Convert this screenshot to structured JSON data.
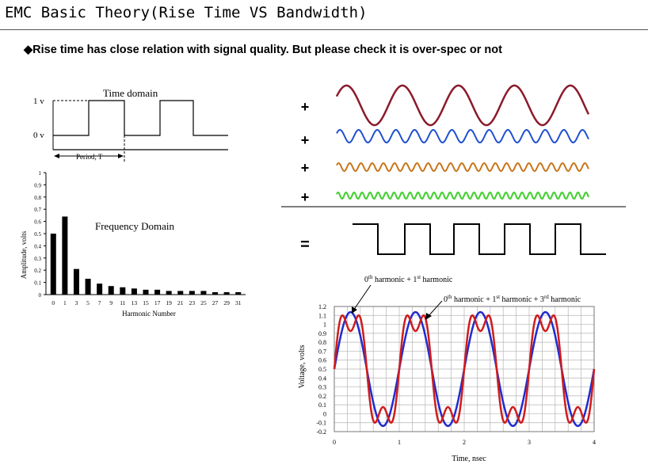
{
  "slide": {
    "title": "EMC Basic Theory(Rise Time VS Bandwidth)",
    "bullet_marker": "◆",
    "bullet_text": "Rise time has close relation with signal quality. But please check it is over-spec or not"
  },
  "time_domain": {
    "label": "Time domain",
    "y_labels": [
      "1 v",
      "0 v"
    ],
    "period_label": "Period, T"
  },
  "frequency_domain": {
    "label": "Frequency Domain",
    "colors": {
      "bars": "#000000"
    }
  },
  "harmonics_sum": {
    "plus_symbols": [
      "+",
      "+",
      "+",
      "+"
    ],
    "equals_symbol": "=",
    "colors": {
      "h1": "#8b1a2b",
      "h3": "#1f4fd1",
      "h5": "#c8761a",
      "h7": "#3fcf2a",
      "square": "#000000"
    }
  },
  "waveform_annotations": {
    "label_a_prefix": "0",
    "label_a_sup1": "th",
    "label_a_mid": " harmonic + 1",
    "label_a_sup2": "st",
    "label_a_suffix": " harmonic",
    "label_b_prefix": "0",
    "label_b_sup1": "th",
    "label_b_mid1": " harmonic + 1",
    "label_b_sup2": "st",
    "label_b_mid2": " harmonic + 3",
    "label_b_sup3": "rd",
    "label_b_suffix": " harmonic"
  },
  "chart_data": [
    {
      "type": "bar",
      "title": "Frequency Domain",
      "xlabel": "Harmonic Number",
      "ylabel": "Amplitude, volts",
      "ylim": [
        0,
        1
      ],
      "yticks": [
        0,
        0.1,
        0.2,
        0.3,
        0.4,
        0.5,
        0.6,
        0.7,
        0.8,
        0.9,
        1
      ],
      "categories": [
        "0",
        "1",
        "3",
        "5",
        "7",
        "9",
        "11",
        "13",
        "15",
        "17",
        "19",
        "21",
        "23",
        "25",
        "27",
        "29",
        "31"
      ],
      "values": [
        0.5,
        0.64,
        0.21,
        0.13,
        0.09,
        0.07,
        0.06,
        0.05,
        0.04,
        0.04,
        0.03,
        0.03,
        0.03,
        0.03,
        0.02,
        0.02,
        0.02
      ],
      "grid": false
    },
    {
      "type": "line",
      "xlabel": "Time, nsec",
      "ylabel": "Voltage, volts",
      "xlim": [
        0,
        4
      ],
      "ylim": [
        -0.2,
        1.2
      ],
      "xticks": [
        0,
        1,
        2,
        3,
        4
      ],
      "yticks": [
        -0.2,
        -0.1,
        0,
        0.1,
        0.2,
        0.3,
        0.4,
        0.5,
        0.6,
        0.7,
        0.8,
        0.9,
        1,
        1.1,
        1.2
      ],
      "grid": true,
      "series": [
        {
          "color": "#1f2bd1",
          "components": {
            "offset": 0.5,
            "h1": 0.637
          }
        },
        {
          "color": "#d01c1c",
          "components": {
            "offset": 0.5,
            "h1": 0.637,
            "h3": 0.212
          }
        }
      ]
    }
  ]
}
